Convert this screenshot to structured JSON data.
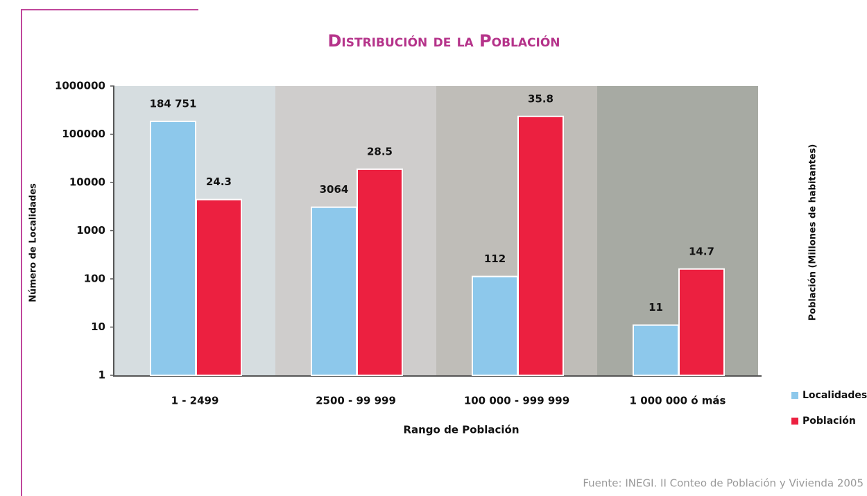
{
  "chart_data": {
    "type": "bar",
    "title": "Distribución de la Población",
    "x_label": "Rango de Población",
    "y_label": "Número de Localidades",
    "y2_label": "Población (Millones de habitantes)",
    "source": "Fuente: INEGI. II Conteo de Población y Vivienda 2005",
    "categories": [
      "1 - 2499",
      "2500 - 99 999",
      "100 000 - 999 999",
      "1 000 000 ó más"
    ],
    "band_colors": [
      "#d6dde0",
      "#cfcdcc",
      "#bfbdb8",
      "#a7aaa3"
    ],
    "series": [
      {
        "name": "Localidades",
        "color": "#8dc8eb",
        "values": [
          184751,
          3064,
          112,
          11
        ],
        "value_labels": [
          "184 751",
          "3064",
          "112",
          "11"
        ]
      },
      {
        "name": "Población",
        "color": "#ec2040",
        "axis": "y2",
        "values": [
          24.3,
          28.5,
          35.8,
          14.7
        ]
      }
    ],
    "ylim": [
      1,
      1000000
    ],
    "yticks": [
      1,
      10,
      100,
      1000,
      10000,
      100000,
      1000000
    ],
    "log_scale": true,
    "y2lim": [
      0,
      40
    ],
    "legend": "right"
  }
}
